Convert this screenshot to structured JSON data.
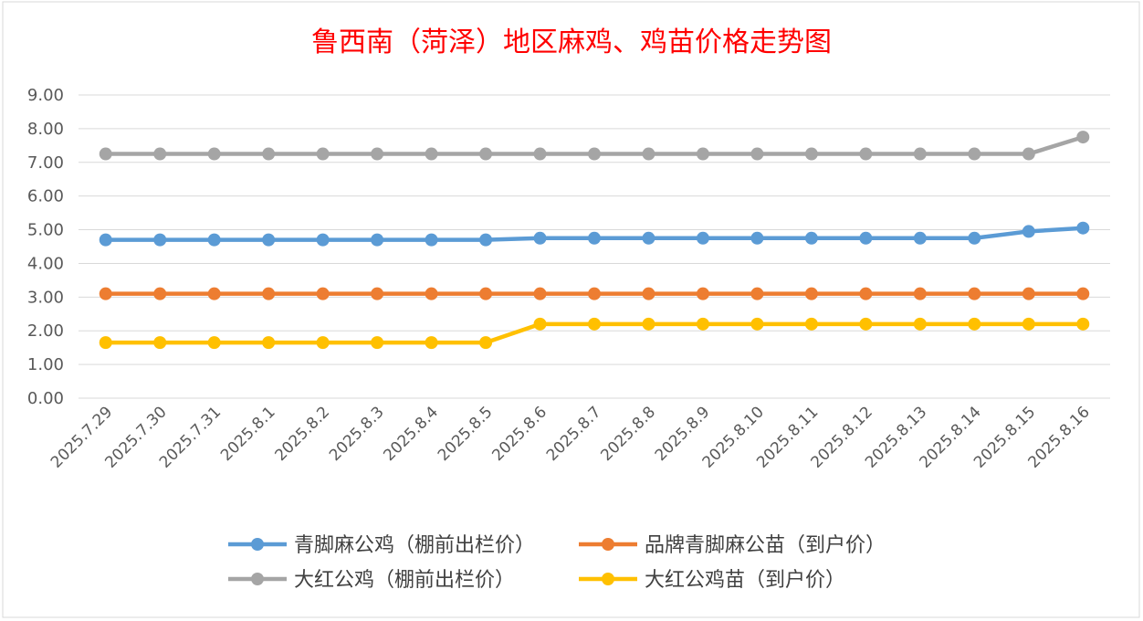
{
  "chart_data": {
    "type": "line",
    "title": "鲁西南（菏泽）地区麻鸡、鸡苗价格走势图",
    "xlabel": "",
    "ylabel": "",
    "categories": [
      "2025.7.29",
      "2025.7.30",
      "2025.7.31",
      "2025.8.1",
      "2025.8.2",
      "2025.8.3",
      "2025.8.4",
      "2025.8.5",
      "2025.8.6",
      "2025.8.7",
      "2025.8.8",
      "2025.8.9",
      "2025.8.10",
      "2025.8.11",
      "2025.8.12",
      "2025.8.13",
      "2025.8.14",
      "2025.8.15",
      "2025.8.16"
    ],
    "ylim": [
      0,
      9
    ],
    "yticks": [
      "0.00",
      "1.00",
      "2.00",
      "3.00",
      "4.00",
      "5.00",
      "6.00",
      "7.00",
      "8.00",
      "9.00"
    ],
    "grid": true,
    "legend_position": "bottom",
    "series": [
      {
        "name": "青脚麻公鸡（棚前出栏价）",
        "color": "#5b9bd5",
        "values": [
          4.7,
          4.7,
          4.7,
          4.7,
          4.7,
          4.7,
          4.7,
          4.7,
          4.75,
          4.75,
          4.75,
          4.75,
          4.75,
          4.75,
          4.75,
          4.75,
          4.75,
          4.95,
          5.05
        ]
      },
      {
        "name": "品牌青脚麻公苗（到户价）",
        "color": "#ed7d31",
        "values": [
          3.1,
          3.1,
          3.1,
          3.1,
          3.1,
          3.1,
          3.1,
          3.1,
          3.1,
          3.1,
          3.1,
          3.1,
          3.1,
          3.1,
          3.1,
          3.1,
          3.1,
          3.1,
          3.1
        ]
      },
      {
        "name": "大红公鸡（棚前出栏价）",
        "color": "#a5a5a5",
        "values": [
          7.25,
          7.25,
          7.25,
          7.25,
          7.25,
          7.25,
          7.25,
          7.25,
          7.25,
          7.25,
          7.25,
          7.25,
          7.25,
          7.25,
          7.25,
          7.25,
          7.25,
          7.25,
          7.75
        ]
      },
      {
        "name": "大红公鸡苗（到户价）",
        "color": "#ffc000",
        "values": [
          1.65,
          1.65,
          1.65,
          1.65,
          1.65,
          1.65,
          1.65,
          1.65,
          2.2,
          2.2,
          2.2,
          2.2,
          2.2,
          2.2,
          2.2,
          2.2,
          2.2,
          2.2,
          2.2
        ]
      }
    ]
  }
}
